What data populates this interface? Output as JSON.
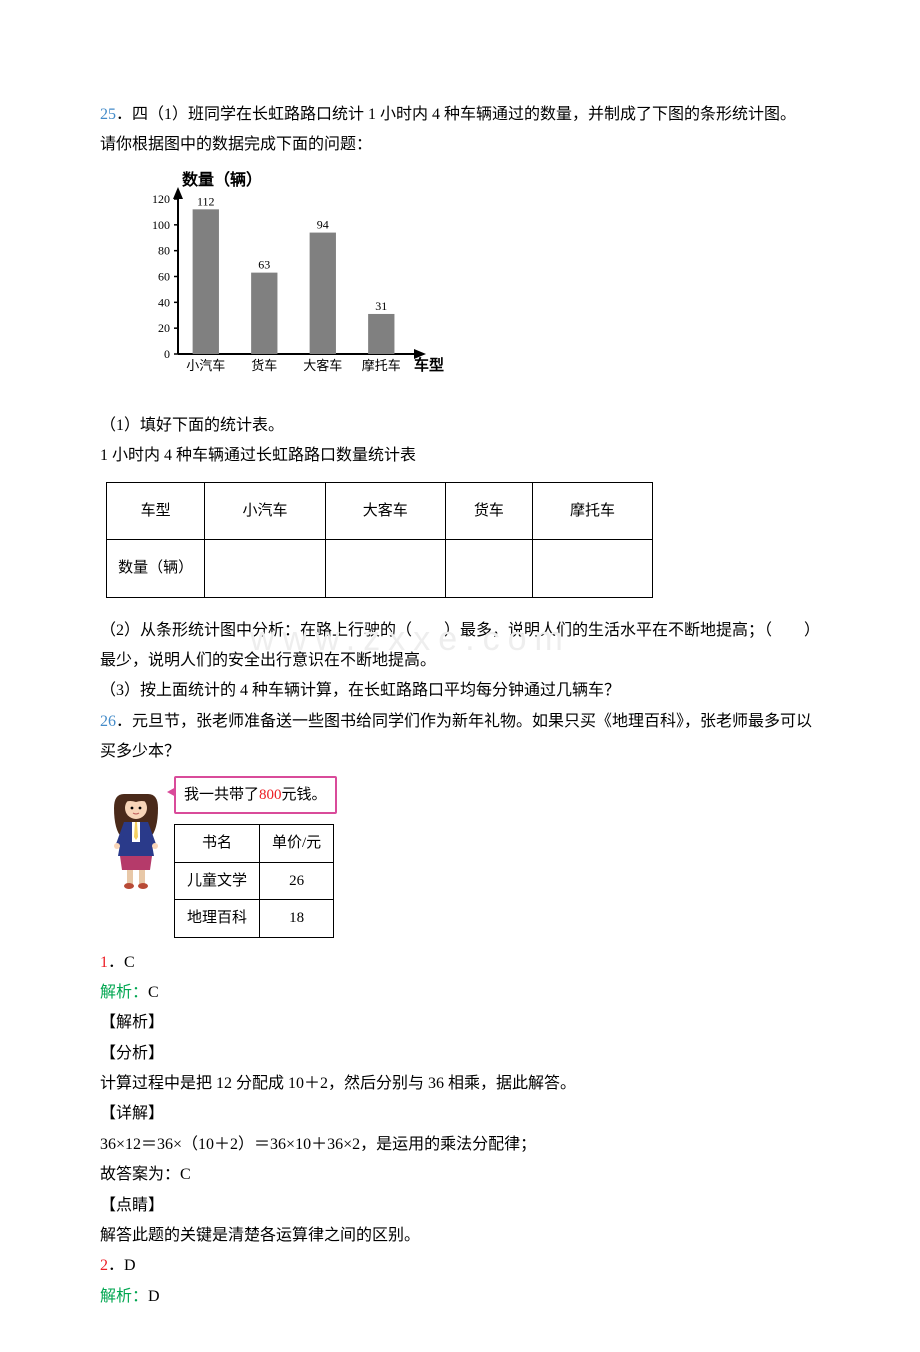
{
  "watermark": "www.zxxe.com",
  "q25": {
    "num": "25",
    "stem1": "．四（1）班同学在长虹路路口统计 1 小时内 4 种车辆通过的数量，并制成了下图的条形统计图。",
    "stem2": "请你根据图中的数据完成下面的问题：",
    "chart": {
      "type": "bar",
      "y_title": "数量（辆）",
      "x_title": "车型",
      "ymax": 120,
      "ytick_step": 20,
      "categories": [
        "小汽车",
        "货车",
        "大客车",
        "摩托车"
      ],
      "values": [
        112,
        63,
        94,
        31
      ],
      "bar_color": "#808080",
      "axis_color": "#000000",
      "bg": "#ffffff",
      "font_size": 12
    },
    "part1_label": "（1）填好下面的统计表。",
    "table_caption": "1 小时内 4 种车辆通过长虹路路口数量统计表",
    "table": {
      "header": [
        "车型",
        "小汽车",
        "大客车",
        "货车",
        "摩托车"
      ],
      "row2_first": "数量（辆）"
    },
    "part2": "（2）从条形统计图中分析：在路上行驶的（　　）最多，说明人们的生活水平在不断地提高；（　　）最少，说明人们的安全出行意识在不断地提高。",
    "part3": "（3）按上面统计的 4 种车辆计算，在长虹路路口平均每分钟通过几辆车？"
  },
  "q26": {
    "num": "26",
    "stem": "．元旦节，张老师准备送一些图书给同学们作为新年礼物。如果只买《地理百科》，张老师最多可以买多少本？",
    "speech_pre": "我一共带了",
    "speech_amt": "800",
    "speech_suf": "元钱。",
    "book_table": {
      "head": [
        "书名",
        "单价/元"
      ],
      "rows": [
        [
          "儿童文学",
          "26"
        ],
        [
          "地理百科",
          "18"
        ]
      ]
    },
    "avatar": {
      "hair": "#4a2a1a",
      "skin": "#f8d5b8",
      "suit": "#2a3a8a",
      "shirt": "#ffffff",
      "tie": "#f5d060",
      "skirt": "#b53a6a",
      "legs": "#e8c8a8",
      "shoe": "#b84a35"
    }
  },
  "ans1": {
    "num": "1",
    "letter": "．C",
    "analysis_label": "解析：",
    "analysis_val": "C",
    "jiexi": "【解析】",
    "fenxi_label": "【分析】",
    "fenxi_body": "计算过程中是把 12 分配成 10＋2，然后分别与 36 相乘，据此解答。",
    "xiangjie_label": "【详解】",
    "xiangjie_body1": "36×12＝36×（10＋2）＝36×10＋36×2，是运用的乘法分配律；",
    "xiangjie_body2": "故答案为：C",
    "dianjing_label": "【点睛】",
    "dianjing_body": "解答此题的关键是清楚各运算律之间的区别。"
  },
  "ans2": {
    "num": "2",
    "letter": "．D",
    "analysis_label": "解析：",
    "analysis_val": "D"
  }
}
